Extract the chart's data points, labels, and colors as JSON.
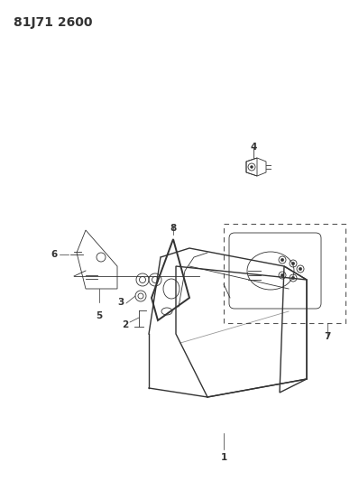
{
  "title": "81J71 2600",
  "bg_color": "#ffffff",
  "line_color": "#333333",
  "title_fontsize": 10,
  "label_fontsize": 7.5,
  "fig_w": 3.98,
  "fig_h": 5.33,
  "dpi": 100
}
